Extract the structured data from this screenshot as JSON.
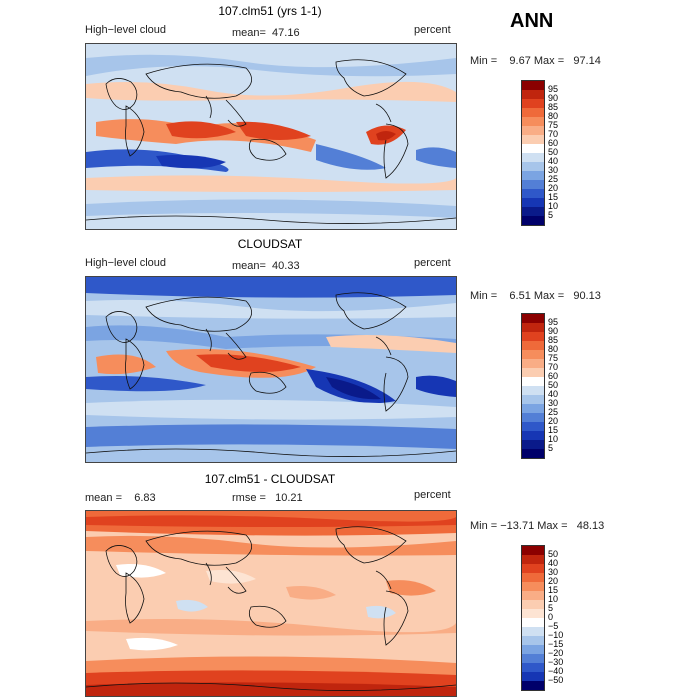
{
  "season": "ANN",
  "panels": [
    {
      "title": "107.clm51 (yrs 1-1)",
      "left_label": "High−level cloud",
      "center_label": "mean=  47.16",
      "right_label": "percent",
      "minmax": "Min =    9.67 Max =   97.14",
      "colorbar_labels": [
        "95",
        "90",
        "85",
        "80",
        "75",
        "70",
        "60",
        "50",
        "40",
        "30",
        "25",
        "20",
        "15",
        "10",
        "5"
      ],
      "colorbar_colors": [
        "#8b0000",
        "#c0250e",
        "#e0421f",
        "#ef6a3a",
        "#f68d5c",
        "#f9ad86",
        "#fbcdb1",
        "#ffffff",
        "#cfe0f2",
        "#a7c5ea",
        "#7ba4e2",
        "#537fd6",
        "#2f58c9",
        "#1636b4",
        "#0a1a8a",
        "#00006a"
      ]
    },
    {
      "title": "CLOUDSAT",
      "left_label": "High−level cloud",
      "center_label": "mean=  40.33",
      "right_label": "percent",
      "minmax": "Min =    6.51 Max =   90.13",
      "colorbar_labels": [
        "95",
        "90",
        "85",
        "80",
        "75",
        "70",
        "60",
        "50",
        "40",
        "30",
        "25",
        "20",
        "15",
        "10",
        "5"
      ],
      "colorbar_colors": [
        "#8b0000",
        "#c0250e",
        "#e0421f",
        "#ef6a3a",
        "#f68d5c",
        "#f9ad86",
        "#fbcdb1",
        "#ffffff",
        "#cfe0f2",
        "#a7c5ea",
        "#7ba4e2",
        "#537fd6",
        "#2f58c9",
        "#1636b4",
        "#0a1a8a",
        "#00006a"
      ]
    },
    {
      "title": "107.clm51 - CLOUDSAT",
      "left_label": "mean =    6.83",
      "center_label": "rmse =   10.21",
      "right_label": "percent",
      "minmax": "Min = −13.71 Max =   48.13",
      "colorbar_labels": [
        "50",
        "40",
        "30",
        "20",
        "15",
        "10",
        "5",
        "0",
        "−5",
        "−10",
        "−15",
        "−20",
        "−30",
        "−40",
        "−50"
      ],
      "colorbar_colors": [
        "#8b0000",
        "#c0250e",
        "#e0421f",
        "#ef6a3a",
        "#f68d5c",
        "#f9ad86",
        "#fbcdb1",
        "#fde4d3",
        "#ffffff",
        "#cfe0f2",
        "#a7c5ea",
        "#7ba4e2",
        "#537fd6",
        "#2f58c9",
        "#1636b4",
        "#00006a"
      ]
    }
  ]
}
